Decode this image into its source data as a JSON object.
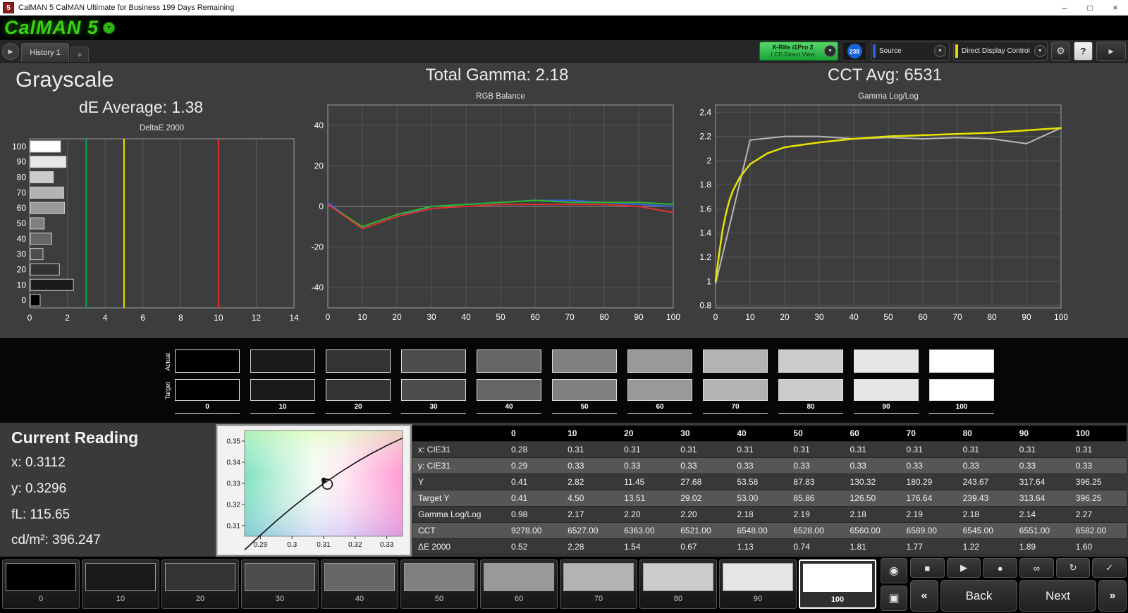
{
  "titlebar": {
    "icon": "5",
    "title": "CalMAN 5 CalMAN Ultimate for Business 199 Days Remaining",
    "window_buttons": {
      "minimize": "–",
      "maximize": "□",
      "close": "×"
    }
  },
  "header": {
    "logo": "CalMAN 5",
    "logo_arrow": "▼"
  },
  "tabs": {
    "expand_glyph": "▶",
    "history_label": "History 1",
    "add_label": "+"
  },
  "toolbar": {
    "meter_line1": "X-Rite i1Pro 2",
    "meter_line2": "LCD Direct View",
    "badge": "238",
    "source_label": "Source",
    "source_accent": "#2864d8",
    "display_control_label": "Direct Display Control",
    "display_control_accent": "#e6d800",
    "dropdown_glyph": "▼",
    "gear_glyph": "⚙",
    "help_glyph": "?",
    "panel_toggle_glyph": "▸"
  },
  "headings": {
    "grayscale": "Grayscale",
    "de_average": "dE Average: 1.38",
    "total_gamma": "Total Gamma: 2.18",
    "cct_avg": "CCT Avg: 6531"
  },
  "chart_data": [
    {
      "type": "bar",
      "title": "DeltaE 2000",
      "orientation": "horizontal",
      "categories": [
        100,
        90,
        80,
        70,
        60,
        50,
        40,
        30,
        20,
        10,
        0
      ],
      "values": [
        1.6,
        1.89,
        1.22,
        1.77,
        1.81,
        0.74,
        1.13,
        0.67,
        1.54,
        2.28,
        0.52
      ],
      "xlim": [
        0,
        14
      ],
      "xticks": [
        0,
        2,
        4,
        6,
        8,
        10,
        12,
        14
      ],
      "ref_lines": [
        {
          "name": "good",
          "value": 3,
          "color": "#00a651"
        },
        {
          "name": "warning",
          "value": 5,
          "color": "#e8e400"
        },
        {
          "name": "bad",
          "value": 10,
          "color": "#e03030"
        }
      ]
    },
    {
      "type": "line",
      "title": "RGB Balance",
      "x": [
        0,
        10,
        20,
        30,
        40,
        50,
        60,
        70,
        80,
        90,
        100
      ],
      "xlim": [
        0,
        100
      ],
      "ylim": [
        -50,
        50
      ],
      "xticks": [
        0,
        10,
        20,
        30,
        40,
        50,
        60,
        70,
        80,
        90,
        100
      ],
      "yticks": [
        -40,
        -20,
        0,
        20,
        40
      ],
      "series": [
        {
          "name": "Blue",
          "color": "#3a5fe0",
          "values": [
            2,
            -11,
            -5,
            0,
            1,
            2,
            3,
            3,
            2,
            1,
            0
          ]
        },
        {
          "name": "Green",
          "color": "#2eb82e",
          "values": [
            1,
            -10,
            -4,
            0,
            1,
            2,
            3,
            2,
            2,
            2,
            1
          ]
        },
        {
          "name": "Red",
          "color": "#e03030",
          "values": [
            1,
            -11,
            -5,
            -1,
            0,
            1,
            1,
            1,
            1,
            0,
            -3
          ]
        }
      ]
    },
    {
      "type": "line",
      "title": "Gamma Log/Log",
      "xlim": [
        0,
        100
      ],
      "ylim": [
        0.78,
        2.46
      ],
      "xticks": [
        0,
        10,
        20,
        30,
        40,
        50,
        60,
        70,
        80,
        90,
        100
      ],
      "yticks": [
        0.8,
        1,
        1.2,
        1.4,
        1.6,
        1.8,
        2,
        2.2,
        2.4
      ],
      "series": [
        {
          "name": "Measured",
          "color": "#b8b8b8",
          "width": 2,
          "x": [
            0,
            10,
            20,
            30,
            40,
            50,
            60,
            70,
            80,
            90,
            100
          ],
          "values": [
            0.98,
            2.17,
            2.2,
            2.2,
            2.18,
            2.19,
            2.18,
            2.19,
            2.18,
            2.14,
            2.27
          ]
        },
        {
          "name": "Target",
          "color": "#e8e500",
          "width": 2.5,
          "x": [
            0,
            1,
            2,
            3,
            4,
            5,
            7,
            10,
            15,
            20,
            30,
            40,
            50,
            60,
            70,
            80,
            90,
            100
          ],
          "values": [
            1.0,
            1.22,
            1.42,
            1.56,
            1.67,
            1.75,
            1.86,
            1.97,
            2.06,
            2.11,
            2.15,
            2.18,
            2.2,
            2.21,
            2.22,
            2.23,
            2.25,
            2.27
          ]
        }
      ]
    },
    {
      "type": "scatter",
      "title": "CIE xy chromaticity",
      "xlim": [
        0.285,
        0.335
      ],
      "ylim": [
        0.305,
        0.355
      ],
      "xticks": [
        0.29,
        0.3,
        0.31,
        0.32,
        0.33
      ],
      "yticks": [
        0.31,
        0.32,
        0.33,
        0.34,
        0.35
      ],
      "locus": [
        [
          0.285,
          0.2985
        ],
        [
          0.29,
          0.3055
        ],
        [
          0.295,
          0.3122
        ],
        [
          0.3,
          0.3185
        ],
        [
          0.305,
          0.3244
        ],
        [
          0.31,
          0.3299
        ],
        [
          0.315,
          0.335
        ],
        [
          0.32,
          0.3397
        ],
        [
          0.325,
          0.344
        ],
        [
          0.33,
          0.3479
        ],
        [
          0.335,
          0.3514
        ]
      ],
      "points": [
        {
          "name": "measured",
          "x": 0.3112,
          "y": 0.3296
        }
      ]
    }
  ],
  "grayscale_levels": [
    {
      "level": "0",
      "color": "#000000"
    },
    {
      "level": "10",
      "color": "#1a1a1a"
    },
    {
      "level": "20",
      "color": "#333333"
    },
    {
      "level": "30",
      "color": "#4d4d4d"
    },
    {
      "level": "40",
      "color": "#666666"
    },
    {
      "level": "50",
      "color": "#808080"
    },
    {
      "level": "60",
      "color": "#999999"
    },
    {
      "level": "70",
      "color": "#b3b3b3"
    },
    {
      "level": "80",
      "color": "#cccccc"
    },
    {
      "level": "90",
      "color": "#e6e6e6"
    },
    {
      "level": "100",
      "color": "#ffffff"
    }
  ],
  "swatch_strip": {
    "actual_label": "Actual",
    "target_label": "Target"
  },
  "current_reading": {
    "title": "Current Reading",
    "lines": [
      "x: 0.3112",
      "y: 0.3296",
      "fL: 115.65",
      "cd/m²: 396.247"
    ]
  },
  "table": {
    "columns": [
      "0",
      "10",
      "20",
      "30",
      "40",
      "50",
      "60",
      "70",
      "80",
      "90",
      "100"
    ],
    "rows": [
      {
        "label": "x: CIE31",
        "values": [
          "0.28",
          "0.31",
          "0.31",
          "0.31",
          "0.31",
          "0.31",
          "0.31",
          "0.31",
          "0.31",
          "0.31",
          "0.31"
        ]
      },
      {
        "label": "y: CIE31",
        "values": [
          "0.29",
          "0.33",
          "0.33",
          "0.33",
          "0.33",
          "0.33",
          "0.33",
          "0.33",
          "0.33",
          "0.33",
          "0.33"
        ]
      },
      {
        "label": "Y",
        "values": [
          "0.41",
          "2.82",
          "11.45",
          "27.68",
          "53.58",
          "87.83",
          "130.32",
          "180.29",
          "243.67",
          "317.64",
          "396.25"
        ]
      },
      {
        "label": "Target Y",
        "values": [
          "0.41",
          "4.50",
          "13.51",
          "29.02",
          "53.00",
          "85.86",
          "126.50",
          "176.64",
          "239.43",
          "313.64",
          "396.25"
        ]
      },
      {
        "label": "Gamma Log/Log",
        "values": [
          "0.98",
          "2.17",
          "2.20",
          "2.20",
          "2.18",
          "2.19",
          "2.18",
          "2.19",
          "2.18",
          "2.14",
          "2.27"
        ]
      },
      {
        "label": "CCT",
        "values": [
          "9278.00",
          "6527.00",
          "6363.00",
          "6521.00",
          "6548.00",
          "6528.00",
          "6560.00",
          "6589.00",
          "6545.00",
          "6551.00",
          "6582.00"
        ]
      },
      {
        "label": "ΔE 2000",
        "values": [
          "0.52",
          "2.28",
          "1.54",
          "0.67",
          "1.13",
          "0.74",
          "1.81",
          "1.77",
          "1.22",
          "1.89",
          "1.60"
        ]
      }
    ]
  },
  "pattern_bar": {
    "selected_level": "100"
  },
  "transport": {
    "side_buttons": [
      {
        "name": "probe-view",
        "glyph": "◉"
      },
      {
        "name": "pattern-window",
        "glyph": "▣"
      }
    ],
    "top_buttons": [
      {
        "name": "stop",
        "glyph": "■"
      },
      {
        "name": "play",
        "glyph": "▶"
      },
      {
        "name": "record",
        "glyph": "●"
      },
      {
        "name": "continuous-read",
        "glyph": "∞"
      },
      {
        "name": "loop",
        "glyph": "↻"
      },
      {
        "name": "accept",
        "glyph": "✓"
      }
    ],
    "prev_glyph": "«",
    "back_label": "Back",
    "next_label": "Next",
    "next_glyph": "»"
  }
}
